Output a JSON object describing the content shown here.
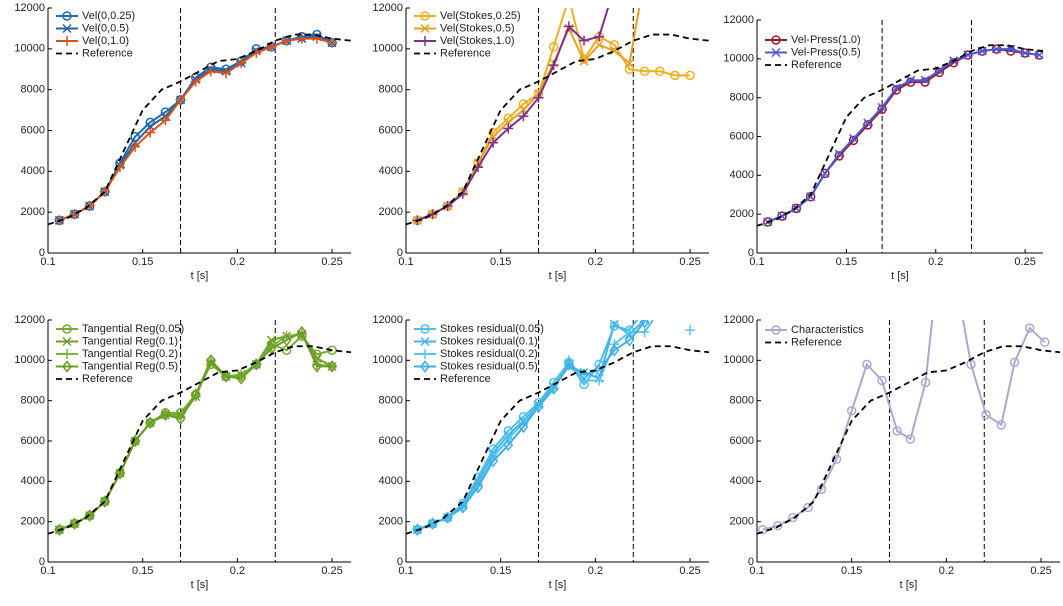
{
  "chart_data": [
    {
      "type": "line",
      "xlabel": "t [s]",
      "xlim": [
        0.1,
        0.26
      ],
      "ylim": [
        0,
        12000
      ],
      "xticks": [
        0.1,
        0.15,
        0.2,
        0.25
      ],
      "yticks": [
        0,
        2000,
        4000,
        6000,
        8000,
        10000,
        12000
      ],
      "vlines": [
        0.17,
        0.22
      ],
      "x": [
        0.106,
        0.114,
        0.122,
        0.13,
        0.138,
        0.146,
        0.154,
        0.162,
        0.17,
        0.178,
        0.186,
        0.194,
        0.202,
        0.21,
        0.218,
        0.226,
        0.234,
        0.242,
        0.25
      ],
      "series": [
        {
          "name": "Vel(0,0.25)",
          "color": "#1a6fb0",
          "marker": "o",
          "values": [
            1600,
            1900,
            2300,
            3000,
            4400,
            5700,
            6400,
            6900,
            7500,
            8600,
            9100,
            9000,
            9400,
            10000,
            10100,
            10400,
            10600,
            10700,
            10300
          ]
        },
        {
          "name": "Vel(0,0.5)",
          "color": "#2f5fa8",
          "marker": "x",
          "values": [
            1600,
            1900,
            2300,
            3000,
            4300,
            5400,
            6200,
            6700,
            7500,
            8500,
            9000,
            8900,
            9300,
            9900,
            10100,
            10400,
            10500,
            10600,
            10300
          ]
        },
        {
          "name": "Vel(0,1.0)",
          "color": "#d95319",
          "marker": "+",
          "values": [
            1600,
            1900,
            2300,
            3000,
            4200,
            5200,
            5900,
            6500,
            7500,
            8400,
            8900,
            8800,
            9300,
            9800,
            10100,
            10400,
            10500,
            10500,
            10300
          ]
        },
        {
          "name": "Reference",
          "color": "#000000",
          "style": "dashed",
          "x": [
            0.1,
            0.11,
            0.12,
            0.13,
            0.14,
            0.15,
            0.16,
            0.17,
            0.18,
            0.19,
            0.2,
            0.21,
            0.22,
            0.23,
            0.24,
            0.25,
            0.26
          ],
          "values": [
            1400,
            1700,
            2200,
            3000,
            5000,
            7000,
            8000,
            8400,
            8900,
            9400,
            9500,
            9900,
            10400,
            10700,
            10700,
            10500,
            10400
          ]
        }
      ]
    },
    {
      "type": "line",
      "xlabel": "t [s]",
      "xlim": [
        0.1,
        0.26
      ],
      "ylim": [
        0,
        12000
      ],
      "xticks": [
        0.1,
        0.15,
        0.2,
        0.25
      ],
      "yticks": [
        0,
        2000,
        4000,
        6000,
        8000,
        10000,
        12000
      ],
      "vlines": [
        0.17,
        0.22
      ],
      "x": [
        0.106,
        0.114,
        0.122,
        0.13,
        0.138,
        0.146,
        0.154,
        0.162,
        0.17,
        0.178,
        0.186,
        0.194,
        0.202,
        0.21,
        0.218,
        0.226,
        0.234,
        0.242,
        0.25
      ],
      "series": [
        {
          "name": "Vel(Stokes,0.25)",
          "color": "#edb120",
          "marker": "o",
          "values": [
            1600,
            1900,
            2300,
            3000,
            4400,
            5900,
            6600,
            7300,
            7800,
            10100,
            12500,
            9500,
            10600,
            10200,
            9000,
            8900,
            8900,
            8700,
            8700
          ]
        },
        {
          "name": "Vel(Stokes,0.5)",
          "color": "#e8a020",
          "marker": "x",
          "values": [
            1600,
            1900,
            2300,
            3000,
            4400,
            5700,
            6400,
            7000,
            7800,
            9300,
            11000,
            9400,
            10200,
            9900,
            9300,
            13500,
            null,
            null,
            null
          ]
        },
        {
          "name": "Vel(Stokes,1.0)",
          "color": "#7e2f8e",
          "marker": "+",
          "values": [
            1600,
            1900,
            2300,
            2900,
            4200,
            5400,
            6100,
            6700,
            7600,
            9200,
            11100,
            10400,
            10600,
            13000,
            null,
            null,
            null,
            null,
            null
          ]
        },
        {
          "name": "Reference",
          "color": "#000000",
          "style": "dashed",
          "x": [
            0.1,
            0.11,
            0.12,
            0.13,
            0.14,
            0.15,
            0.16,
            0.17,
            0.18,
            0.19,
            0.2,
            0.21,
            0.22,
            0.23,
            0.24,
            0.25,
            0.26
          ],
          "values": [
            1400,
            1700,
            2200,
            3000,
            5000,
            7000,
            8000,
            8400,
            8900,
            9400,
            9500,
            9900,
            10400,
            10700,
            10700,
            10500,
            10400
          ]
        }
      ]
    },
    {
      "type": "line",
      "xlabel": "t [s]",
      "xlim": [
        0.1,
        0.26
      ],
      "ylim": [
        0,
        12000
      ],
      "xticks": [
        0.1,
        0.15,
        0.2,
        0.25
      ],
      "yticks": [
        0,
        2000,
        4000,
        6000,
        8000,
        10000,
        12000
      ],
      "vlines": [
        0.17,
        0.22
      ],
      "x": [
        0.106,
        0.114,
        0.122,
        0.13,
        0.138,
        0.146,
        0.154,
        0.162,
        0.17,
        0.178,
        0.186,
        0.194,
        0.202,
        0.21,
        0.218,
        0.226,
        0.234,
        0.242,
        0.25,
        0.258
      ],
      "series": [
        {
          "name": "Vel-Press(1.0)",
          "color": "#a2142f",
          "marker": "o",
          "values": [
            1600,
            1900,
            2300,
            2900,
            4100,
            5000,
            5800,
            6600,
            7400,
            8400,
            8800,
            8800,
            9300,
            9800,
            10200,
            10400,
            10500,
            10400,
            10300,
            10200
          ]
        },
        {
          "name": "Vel-Press(0.5)",
          "color": "#4a5ad8",
          "marker": "x",
          "values": [
            1600,
            1900,
            2300,
            2900,
            4100,
            5100,
            5900,
            6700,
            7500,
            8500,
            8900,
            8900,
            9400,
            9900,
            10200,
            10400,
            10500,
            10500,
            10300,
            10200
          ]
        },
        {
          "name": "Reference",
          "color": "#000000",
          "style": "dashed",
          "x": [
            0.1,
            0.11,
            0.12,
            0.13,
            0.14,
            0.15,
            0.16,
            0.17,
            0.18,
            0.19,
            0.2,
            0.21,
            0.22,
            0.23,
            0.24,
            0.25,
            0.26
          ],
          "values": [
            1400,
            1700,
            2200,
            3000,
            5000,
            7000,
            8000,
            8400,
            8900,
            9400,
            9500,
            9900,
            10400,
            10700,
            10700,
            10500,
            10400
          ]
        }
      ]
    },
    {
      "type": "line",
      "xlabel": "t [s]",
      "xlim": [
        0.1,
        0.26
      ],
      "ylim": [
        0,
        12000
      ],
      "xticks": [
        0.1,
        0.15,
        0.2,
        0.25
      ],
      "yticks": [
        0,
        2000,
        4000,
        6000,
        8000,
        10000,
        12000
      ],
      "vlines": [
        0.17,
        0.22
      ],
      "x": [
        0.106,
        0.114,
        0.122,
        0.13,
        0.138,
        0.146,
        0.154,
        0.162,
        0.17,
        0.178,
        0.186,
        0.194,
        0.202,
        0.21,
        0.218,
        0.226,
        0.234,
        0.242,
        0.25
      ],
      "series": [
        {
          "name": "Tangential Reg(0.05)",
          "color": "#77ac30",
          "marker": "o",
          "values": [
            1600,
            1900,
            2300,
            3000,
            4400,
            6000,
            6900,
            7400,
            7400,
            8300,
            9800,
            9200,
            9200,
            9800,
            10800,
            10500,
            11200,
            10300,
            10500
          ]
        },
        {
          "name": "Tangential Reg(0.1)",
          "color": "#6fa02a",
          "marker": "x",
          "values": [
            1600,
            1900,
            2300,
            3000,
            4400,
            6000,
            6900,
            7300,
            7300,
            8200,
            9900,
            9200,
            9300,
            9800,
            11000,
            11200,
            11300,
            10100,
            9700
          ]
        },
        {
          "name": "Tangential Reg(0.2)",
          "color": "#7fb43a",
          "marker": "+",
          "values": [
            1600,
            1900,
            2300,
            3000,
            4400,
            6000,
            6900,
            7300,
            7200,
            8200,
            10000,
            9200,
            9300,
            9800,
            10700,
            11200,
            11300,
            9800,
            9700
          ]
        },
        {
          "name": "Tangential Reg(0.5)",
          "color": "#6a9c28",
          "marker": "d",
          "values": [
            1600,
            1900,
            2300,
            3000,
            4400,
            6000,
            6900,
            7300,
            7100,
            8300,
            10000,
            9200,
            9100,
            9800,
            10600,
            11000,
            11400,
            9700,
            9700
          ]
        },
        {
          "name": "Reference",
          "color": "#000000",
          "style": "dashed",
          "x": [
            0.1,
            0.11,
            0.12,
            0.13,
            0.14,
            0.15,
            0.16,
            0.17,
            0.18,
            0.19,
            0.2,
            0.21,
            0.22,
            0.23,
            0.24,
            0.25,
            0.26
          ],
          "values": [
            1400,
            1700,
            2200,
            3000,
            5000,
            7000,
            8000,
            8400,
            8900,
            9400,
            9500,
            9900,
            10400,
            10700,
            10700,
            10500,
            10400
          ]
        }
      ]
    },
    {
      "type": "line",
      "xlabel": "t [s]",
      "xlim": [
        0.1,
        0.26
      ],
      "ylim": [
        0,
        12000
      ],
      "xticks": [
        0.1,
        0.15,
        0.2,
        0.25
      ],
      "yticks": [
        0,
        2000,
        4000,
        6000,
        8000,
        10000,
        12000
      ],
      "vlines": [
        0.17,
        0.22
      ],
      "x": [
        0.106,
        0.114,
        0.122,
        0.13,
        0.138,
        0.146,
        0.154,
        0.162,
        0.17,
        0.178,
        0.186,
        0.194,
        0.202,
        0.21,
        0.218,
        0.226,
        0.234,
        0.242,
        0.25
      ],
      "series": [
        {
          "name": "Stokes residual(0.05)",
          "color": "#4dbeee",
          "marker": "o",
          "values": [
            1600,
            1900,
            2200,
            2900,
            4200,
            5600,
            6500,
            7200,
            7900,
            8900,
            9900,
            8800,
            9800,
            11700,
            11500,
            12500,
            null,
            null,
            null
          ]
        },
        {
          "name": "Stokes residual(0.1)",
          "color": "#45b4e6",
          "marker": "x",
          "values": [
            1600,
            1900,
            2200,
            2800,
            4000,
            5400,
            6300,
            7000,
            7800,
            8700,
            9700,
            9400,
            9100,
            11800,
            11300,
            12000,
            null,
            null,
            null
          ]
        },
        {
          "name": "Stokes residual(0.2)",
          "color": "#55c4f2",
          "marker": "+",
          "values": [
            1600,
            1900,
            2200,
            2700,
            3800,
            5200,
            6100,
            6900,
            7700,
            8600,
            10000,
            9000,
            9000,
            10800,
            11400,
            11400,
            12500,
            null,
            11500
          ]
        },
        {
          "name": "Stokes residual(0.5)",
          "color": "#3fb0e2",
          "marker": "d",
          "values": [
            1600,
            1900,
            2200,
            2700,
            3700,
            5000,
            5800,
            6700,
            7700,
            8600,
            9800,
            9300,
            9500,
            10500,
            11000,
            11900,
            null,
            null,
            null
          ]
        },
        {
          "name": "Reference",
          "color": "#000000",
          "style": "dashed",
          "x": [
            0.1,
            0.11,
            0.12,
            0.13,
            0.14,
            0.15,
            0.16,
            0.17,
            0.18,
            0.19,
            0.2,
            0.21,
            0.22,
            0.23,
            0.24,
            0.25,
            0.26
          ],
          "values": [
            1400,
            1700,
            2200,
            3000,
            5000,
            7000,
            8000,
            8400,
            8900,
            9400,
            9500,
            9900,
            10400,
            10700,
            10700,
            10500,
            10400
          ]
        }
      ]
    },
    {
      "type": "line",
      "xlabel": "t [s]",
      "xlim": [
        0.1,
        0.26
      ],
      "ylim": [
        0,
        12000
      ],
      "xticks": [
        0.1,
        0.15,
        0.2,
        0.25
      ],
      "yticks": [
        0,
        2000,
        4000,
        6000,
        8000,
        10000,
        12000
      ],
      "vlines": [
        0.17,
        0.22
      ],
      "x": [
        0.103,
        0.111,
        0.119,
        0.127,
        0.134,
        0.142,
        0.15,
        0.158,
        0.166,
        0.174,
        0.181,
        0.189,
        0.197,
        0.205,
        0.213,
        0.221,
        0.229,
        0.236,
        0.244,
        0.252
      ],
      "series": [
        {
          "name": "Characteristics",
          "color": "#a9a9d0",
          "marker": "o",
          "values": [
            1600,
            1800,
            2200,
            2700,
            3600,
            5100,
            7500,
            9800,
            9000,
            6500,
            6100,
            8900,
            16000,
            14000,
            9800,
            7300,
            6800,
            9900,
            11600,
            10900
          ]
        },
        {
          "name": "Reference",
          "color": "#000000",
          "style": "dashed",
          "x": [
            0.1,
            0.11,
            0.12,
            0.13,
            0.14,
            0.15,
            0.16,
            0.17,
            0.18,
            0.19,
            0.2,
            0.21,
            0.22,
            0.23,
            0.24,
            0.25,
            0.26
          ],
          "values": [
            1400,
            1700,
            2200,
            3000,
            5000,
            7000,
            8000,
            8400,
            8900,
            9400,
            9500,
            9900,
            10400,
            10700,
            10700,
            10500,
            10400
          ]
        }
      ]
    }
  ]
}
